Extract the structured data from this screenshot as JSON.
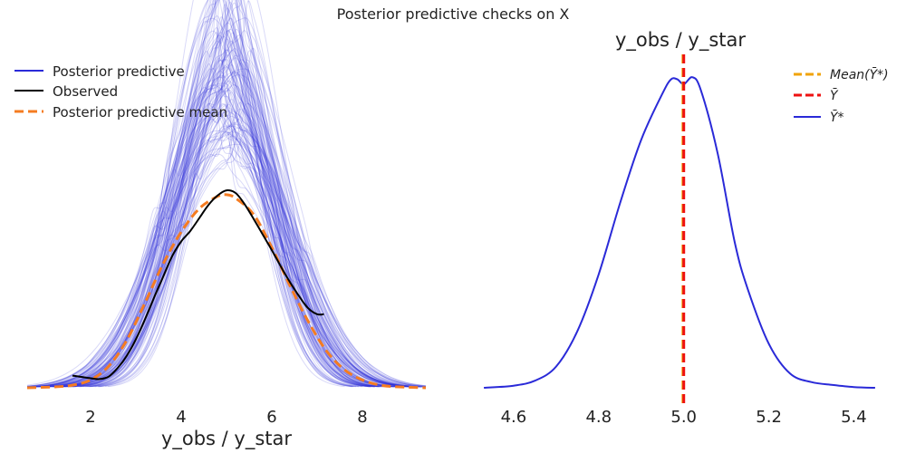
{
  "figure": {
    "suptitle": "Posterior predictive checks on X",
    "subplots": [
      "left",
      "right"
    ]
  },
  "colors": {
    "posterior_predictive": "#2a2ad8",
    "observed": "#000000",
    "posterior_predictive_mean": "#f57c21",
    "mean_ystar": "#f0a30a",
    "ybar": "#ee1111",
    "ystar_bar": "#2a2ad8"
  },
  "chart_data": [
    {
      "id": "left",
      "type": "line",
      "title": "",
      "xlabel": "y_obs / y_star",
      "ylabel": "",
      "xlim": [
        0.5,
        9.5
      ],
      "ylim": [
        0,
        0.45
      ],
      "xticks": [
        2,
        4,
        6,
        8
      ],
      "grid": false,
      "legend_position": "top-left",
      "legend": [
        "Posterior predictive",
        "Observed",
        "Posterior predictive mean"
      ],
      "series": [
        {
          "name": "Posterior predictive",
          "style": "thin translucent lines (many draws)",
          "n_draws": 120,
          "x_range": [
            0.6,
            9.4
          ],
          "typical_mean": 5.0,
          "typical_sd": 1.1,
          "peak_density_range": [
            0.16,
            0.4
          ]
        },
        {
          "name": "Observed",
          "style": "solid black",
          "x": [
            1.6,
            2.0,
            2.2,
            2.4,
            2.6,
            2.8,
            3.0,
            3.2,
            3.4,
            3.6,
            3.8,
            4.0,
            4.2,
            4.4,
            4.6,
            4.8,
            5.0,
            5.2,
            5.4,
            5.6,
            5.8,
            6.0,
            6.2,
            6.4,
            6.6,
            6.8,
            7.0,
            7.15
          ],
          "y": [
            0.014,
            0.011,
            0.01,
            0.013,
            0.023,
            0.037,
            0.056,
            0.079,
            0.104,
            0.128,
            0.152,
            0.169,
            0.181,
            0.196,
            0.211,
            0.222,
            0.228,
            0.225,
            0.212,
            0.195,
            0.177,
            0.159,
            0.14,
            0.122,
            0.106,
            0.092,
            0.085,
            0.085
          ]
        },
        {
          "name": "Posterior predictive mean",
          "style": "dashed orange",
          "x": [
            0.6,
            1.2,
            1.6,
            2.0,
            2.4,
            2.8,
            3.2,
            3.6,
            4.0,
            4.4,
            4.8,
            5.0,
            5.2,
            5.6,
            6.0,
            6.4,
            6.8,
            7.2,
            7.6,
            8.0,
            8.4,
            8.8,
            9.4
          ],
          "y": [
            0.0,
            0.001,
            0.003,
            0.009,
            0.025,
            0.055,
            0.098,
            0.143,
            0.18,
            0.207,
            0.221,
            0.223,
            0.219,
            0.2,
            0.162,
            0.118,
            0.077,
            0.043,
            0.021,
            0.009,
            0.003,
            0.001,
            0.0
          ]
        }
      ]
    },
    {
      "id": "right",
      "type": "line",
      "title": "y_obs / y_star",
      "xlabel": "",
      "ylabel": "",
      "xlim": [
        4.5,
        5.48
      ],
      "ylim": [
        0,
        4.6
      ],
      "xticks": [
        4.6,
        4.8,
        5.0,
        5.2,
        5.4
      ],
      "tick_labels": [
        "4.6",
        "4.8",
        "5.0",
        "5.2",
        "5.4"
      ],
      "grid": false,
      "legend_position": "top-right",
      "legend": [
        "Mean(Ȳ*)",
        "Ȳ",
        "Ȳ*"
      ],
      "vlines": [
        {
          "name": "Mean(Ȳ*)",
          "x": 4.998,
          "style": "dashed"
        },
        {
          "name": "Ȳ",
          "x": 5.0,
          "style": "dashed"
        }
      ],
      "series": [
        {
          "name": "Ȳ*",
          "style": "solid",
          "x": [
            4.53,
            4.6,
            4.65,
            4.7,
            4.75,
            4.8,
            4.85,
            4.9,
            4.95,
            4.97,
            4.985,
            5.0,
            5.02,
            5.04,
            5.08,
            5.12,
            5.15,
            5.2,
            5.25,
            5.3,
            5.35,
            5.4,
            5.45
          ],
          "y": [
            0.0,
            0.03,
            0.1,
            0.3,
            0.8,
            1.6,
            2.6,
            3.5,
            4.15,
            4.35,
            4.35,
            4.28,
            4.38,
            4.2,
            3.3,
            2.05,
            1.4,
            0.62,
            0.2,
            0.08,
            0.04,
            0.01,
            0.0
          ]
        }
      ]
    }
  ]
}
